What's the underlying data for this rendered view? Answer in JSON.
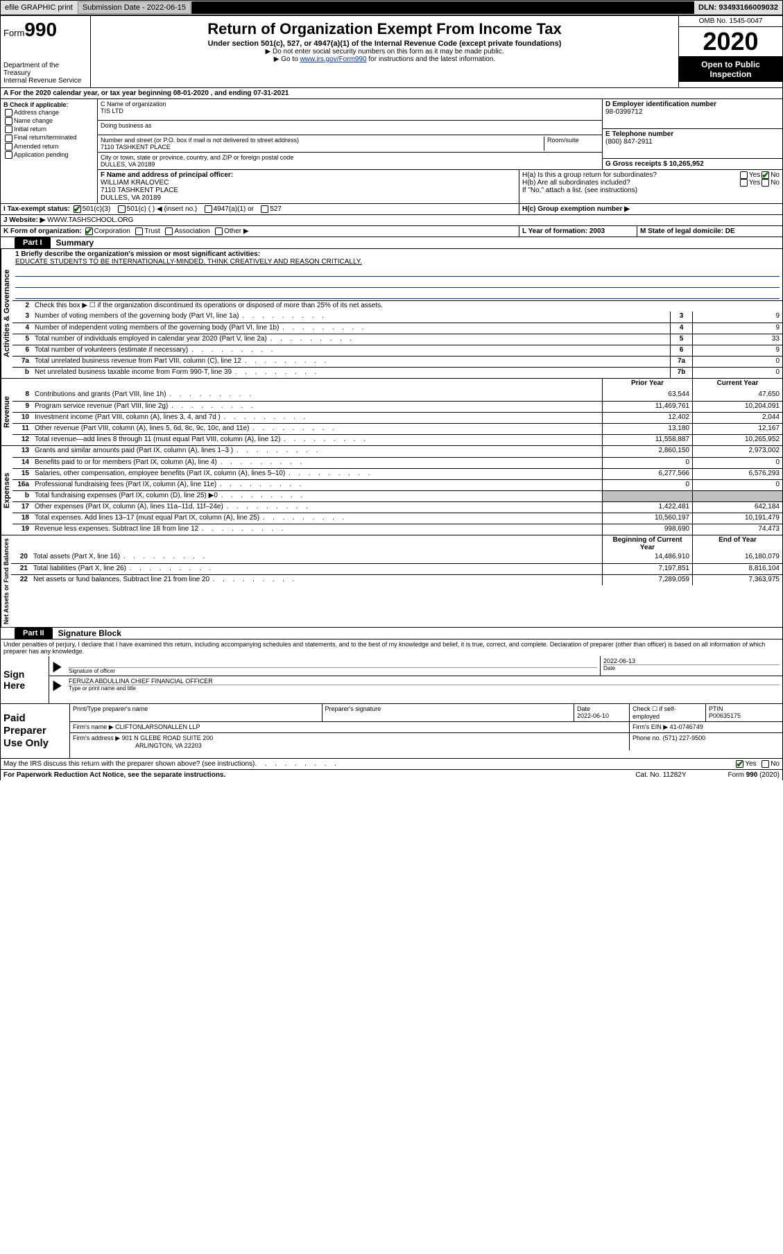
{
  "topbar": {
    "efile": "efile GRAPHIC print",
    "sub_label": "Submission Date - 2022-06-15",
    "dln": "DLN: 93493166009032"
  },
  "header": {
    "form_label": "Form",
    "form_num": "990",
    "dept": "Department of the Treasury\nInternal Revenue Service",
    "title": "Return of Organization Exempt From Income Tax",
    "sub": "Under section 501(c), 527, or 4947(a)(1) of the Internal Revenue Code (except private foundations)",
    "note1": "▶ Do not enter social security numbers on this form as it may be made public.",
    "note2_pre": "▶ Go to ",
    "note2_link": "www.irs.gov/Form990",
    "note2_post": " for instructions and the latest information.",
    "omb": "OMB No. 1545-0047",
    "year": "2020",
    "inspect": "Open to Public Inspection"
  },
  "A": {
    "text": "A For the 2020 calendar year, or tax year beginning 08-01-2020   , and ending 07-31-2021"
  },
  "B": {
    "label": "B Check if applicable:",
    "items": [
      "Address change",
      "Name change",
      "Initial return",
      "Final return/terminated",
      "Amended return",
      "Application pending"
    ]
  },
  "C": {
    "name_label": "C Name of organization",
    "name": "TIS LTD",
    "dba_label": "Doing business as",
    "street_label": "Number and street (or P.O. box if mail is not delivered to street address)",
    "room_label": "Room/suite",
    "street": "7110 TASHKENT PLACE",
    "city_label": "City or town, state or province, country, and ZIP or foreign postal code",
    "city": "DULLES, VA  20189"
  },
  "D": {
    "label": "D Employer identification number",
    "value": "98-0399712"
  },
  "E": {
    "label": "E Telephone number",
    "value": "(800) 847-2911"
  },
  "G": {
    "label": "G Gross receipts $ 10,265,952"
  },
  "F": {
    "label": "F Name and address of principal officer:",
    "name": "WILLIAM KRALOVEC",
    "addr1": "7110 TASHKENT PLACE",
    "addr2": "DULLES, VA  20189"
  },
  "H": {
    "a": "H(a)  Is this a group return for subordinates?",
    "b": "H(b)  Are all subordinates included?",
    "b_note": "If \"No,\" attach a list. (see instructions)",
    "c": "H(c)  Group exemption number ▶",
    "yes": "Yes",
    "no": "No"
  },
  "I": {
    "label": "I  Tax-exempt status:",
    "opts": [
      "501(c)(3)",
      "501(c) (  ) ◀ (insert no.)",
      "4947(a)(1) or",
      "527"
    ]
  },
  "J": {
    "label": "J  Website: ▶",
    "value": "WWW.TASHSCHOOL.ORG"
  },
  "K": {
    "label": "K Form of organization:",
    "opts": [
      "Corporation",
      "Trust",
      "Association",
      "Other ▶"
    ]
  },
  "L": {
    "label": "L Year of formation: 2003"
  },
  "M": {
    "label": "M State of legal domicile: DE"
  },
  "part1": {
    "tab": "Part I",
    "title": "Summary"
  },
  "summary": {
    "mission_label": "1  Briefly describe the organization's mission or most significant activities:",
    "mission": "EDUCATE STUDENTS TO BE INTERNATIONALLY-MINDED, THINK CREATIVELY AND REASON CRITICALLY.",
    "line2": "Check this box ▶ ☐  if the organization discontinued its operations or disposed of more than 25% of its net assets.",
    "rows_gov": [
      {
        "n": "3",
        "t": "Number of voting members of the governing body (Part VI, line 1a)",
        "k": "3",
        "v": "9"
      },
      {
        "n": "4",
        "t": "Number of independent voting members of the governing body (Part VI, line 1b)",
        "k": "4",
        "v": "9"
      },
      {
        "n": "5",
        "t": "Total number of individuals employed in calendar year 2020 (Part V, line 2a)",
        "k": "5",
        "v": "33"
      },
      {
        "n": "6",
        "t": "Total number of volunteers (estimate if necessary)",
        "k": "6",
        "v": "9"
      },
      {
        "n": "7a",
        "t": "Total unrelated business revenue from Part VIII, column (C), line 12",
        "k": "7a",
        "v": "0"
      },
      {
        "n": "b",
        "t": "Net unrelated business taxable income from Form 990-T, line 39",
        "k": "7b",
        "v": "0"
      }
    ],
    "hdr_prior": "Prior Year",
    "hdr_curr": "Current Year",
    "rows_rev": [
      {
        "n": "8",
        "t": "Contributions and grants (Part VIII, line 1h)",
        "p": "63,544",
        "c": "47,650"
      },
      {
        "n": "9",
        "t": "Program service revenue (Part VIII, line 2g)",
        "p": "11,469,761",
        "c": "10,204,091"
      },
      {
        "n": "10",
        "t": "Investment income (Part VIII, column (A), lines 3, 4, and 7d )",
        "p": "12,402",
        "c": "2,044"
      },
      {
        "n": "11",
        "t": "Other revenue (Part VIII, column (A), lines 5, 6d, 8c, 9c, 10c, and 11e)",
        "p": "13,180",
        "c": "12,167"
      },
      {
        "n": "12",
        "t": "Total revenue—add lines 8 through 11 (must equal Part VIII, column (A), line 12)",
        "p": "11,558,887",
        "c": "10,265,952"
      }
    ],
    "rows_exp": [
      {
        "n": "13",
        "t": "Grants and similar amounts paid (Part IX, column (A), lines 1–3 )",
        "p": "2,860,150",
        "c": "2,973,002"
      },
      {
        "n": "14",
        "t": "Benefits paid to or for members (Part IX, column (A), line 4)",
        "p": "0",
        "c": "0"
      },
      {
        "n": "15",
        "t": "Salaries, other compensation, employee benefits (Part IX, column (A), lines 5–10)",
        "p": "6,277,566",
        "c": "6,576,293"
      },
      {
        "n": "16a",
        "t": "Professional fundraising fees (Part IX, column (A), line 11e)",
        "p": "0",
        "c": "0"
      },
      {
        "n": "b",
        "t": "Total fundraising expenses (Part IX, column (D), line 25) ▶0",
        "p": "",
        "c": "",
        "gray": true
      },
      {
        "n": "17",
        "t": "Other expenses (Part IX, column (A), lines 11a–11d, 11f–24e)",
        "p": "1,422,481",
        "c": "642,184"
      },
      {
        "n": "18",
        "t": "Total expenses. Add lines 13–17 (must equal Part IX, column (A), line 25)",
        "p": "10,560,197",
        "c": "10,191,479"
      },
      {
        "n": "19",
        "t": "Revenue less expenses. Subtract line 18 from line 12",
        "p": "998,690",
        "c": "74,473"
      }
    ],
    "hdr_beg": "Beginning of Current Year",
    "hdr_end": "End of Year",
    "rows_net": [
      {
        "n": "20",
        "t": "Total assets (Part X, line 16)",
        "p": "14,486,910",
        "c": "16,180,079"
      },
      {
        "n": "21",
        "t": "Total liabilities (Part X, line 26)",
        "p": "7,197,851",
        "c": "8,816,104"
      },
      {
        "n": "22",
        "t": "Net assets or fund balances. Subtract line 21 from line 20",
        "p": "7,289,059",
        "c": "7,363,975"
      }
    ]
  },
  "vlabels": {
    "gov": "Activities & Governance",
    "rev": "Revenue",
    "exp": "Expenses",
    "net": "Net Assets or Fund Balances"
  },
  "part2": {
    "tab": "Part II",
    "title": "Signature Block"
  },
  "penalty": "Under penalties of perjury, I declare that I have examined this return, including accompanying schedules and statements, and to the best of my knowledge and belief, it is true, correct, and complete. Declaration of preparer (other than officer) is based on all information of which preparer has any knowledge.",
  "sign": {
    "label": "Sign Here",
    "sig_of_officer": "Signature of officer",
    "date_label": "Date",
    "date": "2022-06-13",
    "name": "FERUZA ABDULLINA  CHIEF FINANCIAL OFFICER",
    "name_sub": "Type or print name and title"
  },
  "paid": {
    "label": "Paid Preparer Use Only",
    "h1": "Print/Type preparer's name",
    "h2": "Preparer's signature",
    "h3": "Date",
    "date": "2022-06-10",
    "h4": "Check ☐ if self-employed",
    "h5": "PTIN",
    "ptin": "P00635175",
    "firm_label": "Firm's name    ▶",
    "firm": "CLIFTONLARSONALLEN LLP",
    "ein_label": "Firm's EIN ▶",
    "ein": "41-0746749",
    "addr_label": "Firm's address ▶",
    "addr1": "901 N GLEBE ROAD SUITE 200",
    "addr2": "ARLINGTON, VA  22203",
    "phone_label": "Phone no.",
    "phone": "(571) 227-9500"
  },
  "footer": {
    "discuss": "May the IRS discuss this return with the preparer shown above? (see instructions)",
    "yes": "Yes",
    "no": "No",
    "paperwork": "For Paperwork Reduction Act Notice, see the separate instructions.",
    "cat": "Cat. No. 11282Y",
    "form": "Form 990 (2020)"
  }
}
